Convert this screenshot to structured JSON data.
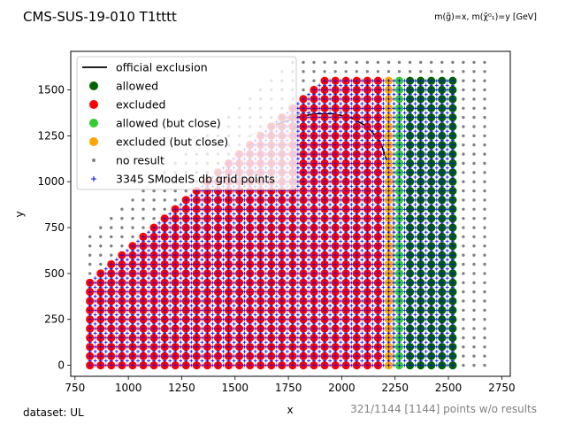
{
  "chart_data": {
    "type": "scatter",
    "title": "CMS-SUS-19-010 T1tttt",
    "subtitle": "m(g̃)=x, m(χ̃⁰₁)=y [GeV]",
    "xlabel": "x",
    "ylabel": "y",
    "xlim": [
      730,
      2790
    ],
    "ylim": [
      -60,
      1710
    ],
    "x_ticks": [
      "750",
      "1000",
      "1250",
      "1500",
      "1750",
      "2000",
      "2250",
      "2500",
      "2750"
    ],
    "x_tick_values": [
      750,
      1000,
      1250,
      1500,
      1750,
      2000,
      2250,
      2500,
      2750
    ],
    "y_ticks": [
      "0",
      "250",
      "500",
      "750",
      "1000",
      "1250",
      "1500"
    ],
    "y_tick_values": [
      0,
      250,
      500,
      750,
      1000,
      1250,
      1500
    ],
    "grid": false,
    "legend_position": "top-left",
    "legend": [
      {
        "label": "official exclusion",
        "marker": "line",
        "color": "#000000"
      },
      {
        "label": "allowed",
        "marker": "dot",
        "color": "#006400"
      },
      {
        "label": "excluded",
        "marker": "dot",
        "color": "#ff0000"
      },
      {
        "label": "allowed (but close)",
        "marker": "dot",
        "color": "#32cd32"
      },
      {
        "label": "excluded (but close)",
        "marker": "dot",
        "color": "#ffa500"
      },
      {
        "label": "no result",
        "marker": "small-dot",
        "color": "#808080"
      },
      {
        "label": "3345 SModelS db grid points",
        "marker": "plus",
        "color": "#0000ff"
      }
    ],
    "colors": {
      "allowed": "#006400",
      "excluded": "#ff0000",
      "allowed_close": "#32cd32",
      "excluded_close": "#ffa500",
      "no_result": "#808080",
      "grid_point": "#0000ff",
      "exclusion_line": "#000000"
    },
    "grid_x_range": [
      820,
      2520,
      50
    ],
    "grid_y_range": [
      0,
      1550,
      50
    ],
    "diagonal_offset": 360,
    "excluded_x_max": 2200,
    "excluded_close_x": [
      2220
    ],
    "allowed_close_x": [
      2270
    ],
    "no_result_x_range": [
      820,
      2670,
      50
    ],
    "no_result_y_range": [
      0,
      1650,
      50
    ],
    "official_exclusion": {
      "x": [
        2220,
        2220,
        2210,
        2180,
        2120,
        2040,
        1960,
        1870,
        1790,
        1740,
        1690
      ],
      "y": [
        0,
        1000,
        1120,
        1220,
        1300,
        1350,
        1370,
        1370,
        1350,
        1330,
        1310
      ]
    },
    "official_exclusion_band": {
      "x": [
        2240,
        2240,
        2230,
        2200,
        2140,
        2060,
        1980,
        1890,
        1810,
        1760,
        1700,
        1620,
        1550
      ],
      "y": [
        0,
        1000,
        1130,
        1240,
        1320,
        1370,
        1390,
        1390,
        1370,
        1350,
        1330,
        1280,
        1240
      ]
    }
  },
  "footer": {
    "dataset": "dataset: UL",
    "points_without_results": "321/1144 [1144] points w/o results"
  }
}
